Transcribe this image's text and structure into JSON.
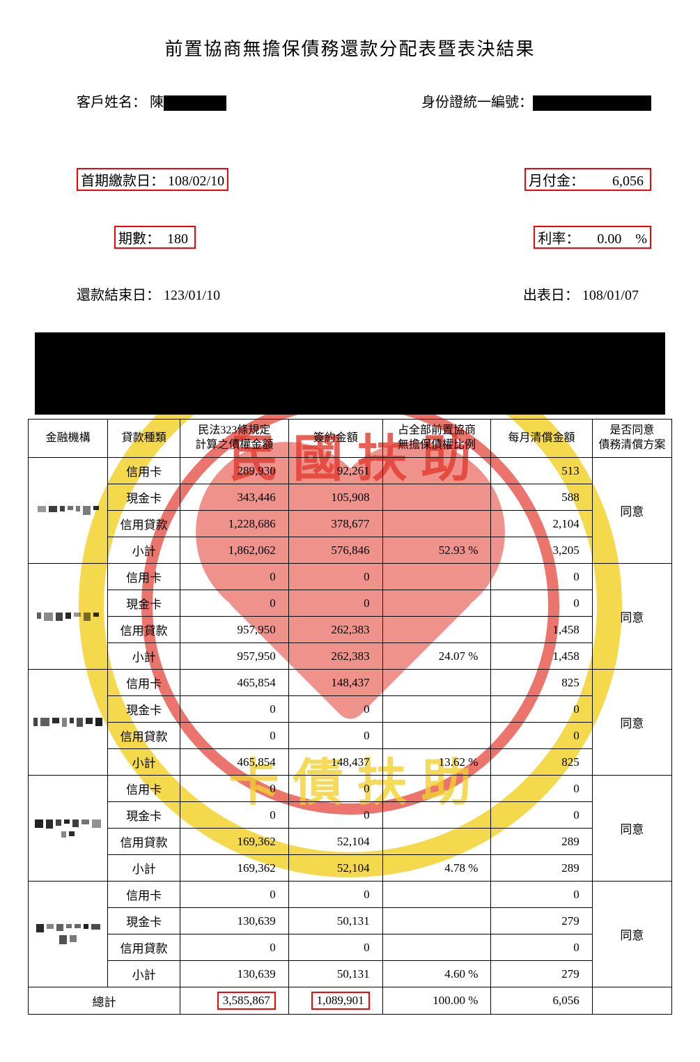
{
  "title": "前置協商無擔保債務還款分配表暨表決結果",
  "labels": {
    "customer": "客戶姓名：",
    "customer_surname": "陳",
    "id": "身份證統一編號：",
    "first_pay": "首期繳款日：",
    "periods": "期數：",
    "end_date": "還款結束日：",
    "monthly": "月付金：",
    "rate": "利率：",
    "report_date": "出表日："
  },
  "values": {
    "first_pay": "108/02/10",
    "periods": "180",
    "end_date": "123/01/10",
    "monthly": "6,056",
    "rate": "0.00",
    "rate_unit": "%",
    "report_date": "108/01/07"
  },
  "table": {
    "headers": {
      "inst": "金融機構",
      "type": "貸款種類",
      "calc": "民法323條規定\n計算之債權金額",
      "contract": "簽約金額",
      "ratio": "占全部前置協商\n無擔保債權比例",
      "monthly": "每月清償金額",
      "agree": "是否同意\n債務清償方案"
    },
    "loan_types": [
      "信用卡",
      "現金卡",
      "信用貸款",
      "小計"
    ],
    "groups": [
      {
        "rows": [
          {
            "calc": "289,930",
            "contract": "92,261",
            "monthly": "513"
          },
          {
            "calc": "343,446",
            "contract": "105,908",
            "monthly": "588"
          },
          {
            "calc": "1,228,686",
            "contract": "378,677",
            "monthly": "2,104"
          },
          {
            "calc": "1,862,062",
            "contract": "576,846",
            "ratio": "52.93 %",
            "monthly": "3,205"
          }
        ],
        "agree": "同意"
      },
      {
        "rows": [
          {
            "calc": "0",
            "contract": "0",
            "monthly": "0"
          },
          {
            "calc": "0",
            "contract": "0",
            "monthly": "0"
          },
          {
            "calc": "957,950",
            "contract": "262,383",
            "monthly": "1,458"
          },
          {
            "calc": "957,950",
            "contract": "262,383",
            "ratio": "24.07 %",
            "monthly": "1,458"
          }
        ],
        "agree": "同意"
      },
      {
        "rows": [
          {
            "calc": "465,854",
            "contract": "148,437",
            "monthly": "825"
          },
          {
            "calc": "0",
            "contract": "0",
            "monthly": "0"
          },
          {
            "calc": "0",
            "contract": "0",
            "monthly": "0"
          },
          {
            "calc": "465,854",
            "contract": "148,437",
            "ratio": "13.62 %",
            "monthly": "825"
          }
        ],
        "agree": "同意"
      },
      {
        "rows": [
          {
            "calc": "0",
            "contract": "0",
            "monthly": "0"
          },
          {
            "calc": "0",
            "contract": "0",
            "monthly": "0"
          },
          {
            "calc": "169,362",
            "contract": "52,104",
            "monthly": "289"
          },
          {
            "calc": "169,362",
            "contract": "52,104",
            "ratio": "4.78 %",
            "monthly": "289"
          }
        ],
        "agree": "同意"
      },
      {
        "rows": [
          {
            "calc": "0",
            "contract": "0",
            "monthly": "0"
          },
          {
            "calc": "130,639",
            "contract": "50,131",
            "monthly": "279"
          },
          {
            "calc": "0",
            "contract": "0",
            "monthly": "0"
          },
          {
            "calc": "130,639",
            "contract": "50,131",
            "ratio": "4.60 %",
            "monthly": "279"
          }
        ],
        "agree": "同意"
      }
    ],
    "total": {
      "label": "總計",
      "calc": "3,585,867",
      "contract": "1,089,901",
      "ratio": "100.00 %",
      "monthly": "6,056"
    }
  },
  "colors": {
    "highlight_border": "#ff0000",
    "watermark_yellow": "#f2d22e",
    "watermark_red": "#e33a2f"
  }
}
